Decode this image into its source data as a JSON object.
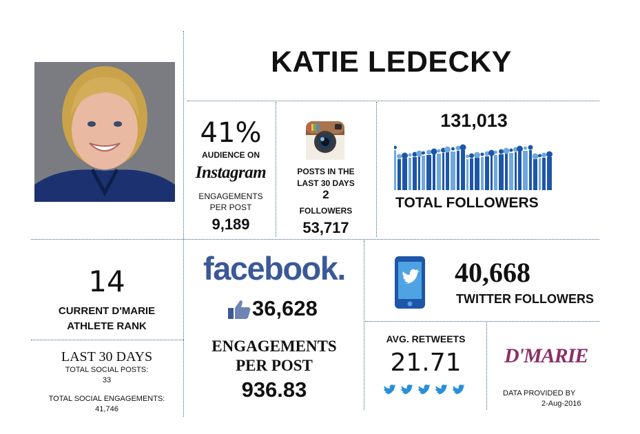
{
  "athlete": {
    "name": "KATIE LEDECKY"
  },
  "instagram": {
    "audience_pct": "41%",
    "audience_label": "AUDIENCE ON",
    "platform_wordmark": "Instagram",
    "engagements_label_1": "ENGAGEMENTS",
    "engagements_label_2": "PER POST",
    "engagements_value": "9,189",
    "posts_label_1": "POSTS IN THE",
    "posts_label_2": "LAST 30 DAYS",
    "posts_value": "2",
    "followers_label": "FOLLOWERS",
    "followers_value": "53,717"
  },
  "total": {
    "value": "131,013",
    "label": "TOTAL FOLLOWERS"
  },
  "rank": {
    "value": "14",
    "label_1": "CURRENT D'MARIE",
    "label_2": "ATHLETE RANK"
  },
  "last30": {
    "heading": "LAST 30 DAYS",
    "posts_label": "TOTAL SOCIAL POSTS:",
    "posts_value": "33",
    "engagements_label": "TOTAL SOCIAL ENGAGEMENTS:",
    "engagements_value": "41,746"
  },
  "facebook": {
    "wordmark": "facebook.",
    "likes_value": "36,628",
    "engagements_label_1": "ENGAGEMENTS",
    "engagements_label_2": "PER POST",
    "engagements_value": "936.83"
  },
  "twitter": {
    "followers_value": "40,668",
    "followers_label": "TWITTER FOLLOWERS",
    "retweets_label": "AVG. RETWEETS",
    "retweets_value": "21.71"
  },
  "footer": {
    "brand": "D'MARIE",
    "provided_by": "DATA PROVIDED BY",
    "date": "2-Aug-2016"
  },
  "colors": {
    "divider": "#3a5f8a",
    "facebook": "#3b5998",
    "twitter": "#2a8fd6",
    "brand": "#8b2f67",
    "bars_dark": "#1d56a8",
    "bars_light": "#6fa8dc"
  }
}
